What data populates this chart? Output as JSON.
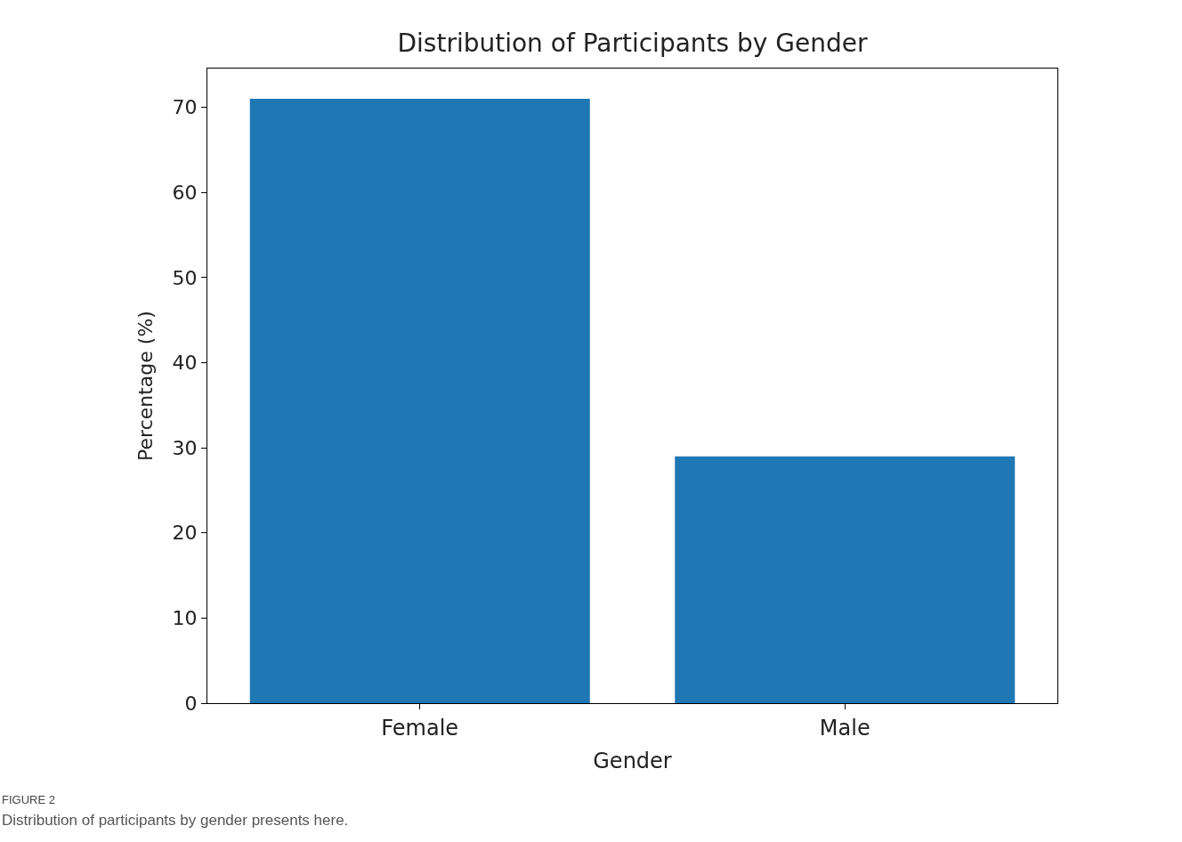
{
  "chart_data": {
    "type": "bar",
    "title": "Distribution of Participants by Gender",
    "xlabel": "Gender",
    "ylabel": "Percentage (%)",
    "categories": [
      "Female",
      "Male"
    ],
    "values": [
      71,
      29
    ],
    "color": "#1f77b4",
    "ylim": [
      0,
      74.55
    ],
    "yticks": [
      0,
      10,
      20,
      30,
      40,
      50,
      60,
      70
    ],
    "annotations": [
      "FIGURE 2",
      "Distribution of participants by gender presents here."
    ]
  }
}
